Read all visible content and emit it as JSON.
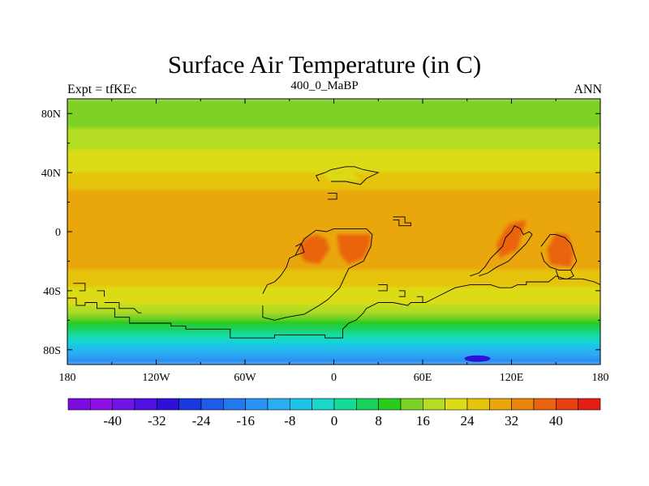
{
  "header": {
    "title": "Surface Air Temperature (in C)",
    "left_label": "Expt = tfKEc",
    "center_label": "400_0_MaBP",
    "right_label": "ANN"
  },
  "map": {
    "x_tick_labels": [
      "180",
      "120W",
      "60W",
      "0",
      "60E",
      "120E",
      "180"
    ],
    "y_tick_labels": [
      "80N",
      "40N",
      "0",
      "40S",
      "80S"
    ],
    "x_range": [
      -180,
      180
    ],
    "y_range": [
      -90,
      90
    ],
    "field_bands": [
      {
        "lat_top": 90,
        "lat_bottom": 80,
        "value": 12
      },
      {
        "lat_top": 80,
        "lat_bottom": 70,
        "value": 14
      },
      {
        "lat_top": 70,
        "lat_bottom": 62,
        "value": 16
      },
      {
        "lat_top": 62,
        "lat_bottom": 55,
        "value": 18
      },
      {
        "lat_top": 55,
        "lat_bottom": 48,
        "value": 20
      },
      {
        "lat_top": 48,
        "lat_bottom": 40,
        "value": 22
      },
      {
        "lat_top": 40,
        "lat_bottom": 34,
        "value": 24
      },
      {
        "lat_top": 34,
        "lat_bottom": 28,
        "value": 26
      },
      {
        "lat_top": 28,
        "lat_bottom": 22,
        "value": 28
      },
      {
        "lat_top": 22,
        "lat_bottom": -20,
        "value": 30
      },
      {
        "lat_top": -20,
        "lat_bottom": -26,
        "value": 28
      },
      {
        "lat_top": -26,
        "lat_bottom": -32,
        "value": 26
      },
      {
        "lat_top": -32,
        "lat_bottom": -38,
        "value": 24
      },
      {
        "lat_top": -38,
        "lat_bottom": -44,
        "value": 22
      },
      {
        "lat_top": -44,
        "lat_bottom": -50,
        "value": 20
      },
      {
        "lat_top": -50,
        "lat_bottom": -56,
        "value": 16
      },
      {
        "lat_top": -56,
        "lat_bottom": -60,
        "value": 12
      },
      {
        "lat_top": -60,
        "lat_bottom": -64,
        "value": 8
      },
      {
        "lat_top": -64,
        "lat_bottom": -68,
        "value": 4
      },
      {
        "lat_top": -68,
        "lat_bottom": -72,
        "value": 0
      },
      {
        "lat_top": -72,
        "lat_bottom": -76,
        "value": -4
      },
      {
        "lat_top": -76,
        "lat_bottom": -80,
        "value": -8
      },
      {
        "lat_top": -80,
        "lat_bottom": -85,
        "value": -12
      },
      {
        "lat_top": -85,
        "lat_bottom": -90,
        "value": -16
      }
    ],
    "hot_regions": [
      {
        "value": 36,
        "points": [
          [
            -20,
            -5
          ],
          [
            -12,
            -2
          ],
          [
            -5,
            -5
          ],
          [
            -3,
            -12
          ],
          [
            -10,
            -22
          ],
          [
            -20,
            -20
          ],
          [
            -24,
            -12
          ]
        ]
      },
      {
        "value": 36,
        "points": [
          [
            2,
            -2
          ],
          [
            25,
            -2
          ],
          [
            24,
            -10
          ],
          [
            20,
            -18
          ],
          [
            10,
            -22
          ],
          [
            4,
            -15
          ]
        ]
      },
      {
        "value": 36,
        "points": [
          [
            118,
            5
          ],
          [
            130,
            8
          ],
          [
            124,
            -12
          ],
          [
            112,
            -18
          ],
          [
            110,
            -8
          ]
        ]
      },
      {
        "value": 36,
        "points": [
          [
            150,
            -1
          ],
          [
            158,
            -2
          ],
          [
            162,
            -14
          ],
          [
            160,
            -24
          ],
          [
            146,
            -22
          ],
          [
            144,
            -12
          ]
        ]
      },
      {
        "value": 20,
        "points": [
          [
            -8,
            40
          ],
          [
            12,
            40
          ],
          [
            18,
            35
          ],
          [
            -2,
            34
          ]
        ]
      }
    ],
    "cold_spot": {
      "lon": 97,
      "lat": -86,
      "value": -32
    },
    "coastline_paths": [
      [
        [
          -176,
          -35
        ],
        [
          -168,
          -35
        ],
        [
          -168,
          -40
        ],
        [
          -172,
          -40
        ]
      ],
      [
        [
          -160,
          -40
        ],
        [
          -155,
          -40
        ],
        [
          -155,
          -44
        ]
      ],
      [
        [
          -180,
          -45
        ],
        [
          -174,
          -45
        ],
        [
          -174,
          -50
        ],
        [
          -168,
          -50
        ],
        [
          -168,
          -48
        ],
        [
          -160,
          -48
        ],
        [
          -160,
          -52
        ],
        [
          -154,
          -52
        ],
        [
          -148,
          -52
        ],
        [
          -148,
          -58
        ],
        [
          -138,
          -58
        ],
        [
          -138,
          -62
        ],
        [
          -110,
          -62
        ],
        [
          -110,
          -64
        ],
        [
          -100,
          -64
        ],
        [
          -100,
          -66
        ],
        [
          -70,
          -66
        ],
        [
          -70,
          -72
        ],
        [
          -40,
          -72
        ],
        [
          -40,
          -70
        ],
        [
          -6,
          -70
        ],
        [
          -6,
          -72
        ],
        [
          6,
          -72
        ],
        [
          6,
          -66
        ],
        [
          10,
          -62
        ],
        [
          15,
          -60
        ],
        [
          20,
          -55
        ],
        [
          22,
          -52
        ],
        [
          30,
          -48
        ],
        [
          40,
          -48
        ],
        [
          50,
          -50
        ],
        [
          52,
          -48
        ],
        [
          62,
          -48
        ],
        [
          68,
          -45
        ],
        [
          74,
          -42
        ],
        [
          82,
          -38
        ],
        [
          92,
          -36
        ],
        [
          106,
          -36
        ],
        [
          112,
          -38
        ],
        [
          120,
          -38
        ],
        [
          124,
          -36
        ],
        [
          130,
          -36
        ],
        [
          130,
          -34
        ],
        [
          145,
          -34
        ],
        [
          150,
          -30
        ],
        [
          156,
          -32
        ],
        [
          168,
          -32
        ],
        [
          176,
          -34
        ],
        [
          180,
          -36
        ]
      ],
      [
        [
          -155,
          -48
        ],
        [
          -145,
          -48
        ],
        [
          -145,
          -52
        ],
        [
          -135,
          -52
        ],
        [
          -132,
          -55
        ],
        [
          -130,
          -55
        ]
      ],
      [
        [
          -48,
          -50
        ],
        [
          -48,
          -58
        ],
        [
          -40,
          -60
        ],
        [
          -32,
          -58
        ],
        [
          -20,
          -56
        ],
        [
          -10,
          -50
        ],
        [
          -4,
          -46
        ],
        [
          4,
          -38
        ],
        [
          10,
          -25
        ],
        [
          20,
          -20
        ],
        [
          25,
          -10
        ],
        [
          26,
          -2
        ],
        [
          22,
          2
        ],
        [
          10,
          2
        ],
        [
          0,
          2
        ],
        [
          -5,
          0
        ],
        [
          -12,
          1
        ],
        [
          -20,
          -5
        ],
        [
          -24,
          -12
        ],
        [
          -26,
          -16
        ],
        [
          -30,
          -18
        ],
        [
          -32,
          -24
        ],
        [
          -36,
          -30
        ],
        [
          -40,
          -34
        ],
        [
          -45,
          -36
        ],
        [
          -48,
          -42
        ]
      ],
      [
        [
          -26,
          -10
        ],
        [
          -22,
          -8
        ],
        [
          -20,
          -14
        ],
        [
          -26,
          -16
        ]
      ],
      [
        [
          -10,
          34
        ],
        [
          -12,
          38
        ],
        [
          -6,
          40
        ],
        [
          -2,
          42
        ],
        [
          8,
          44
        ],
        [
          14,
          44
        ],
        [
          20,
          42
        ],
        [
          30,
          40
        ],
        [
          22,
          36
        ],
        [
          18,
          32
        ],
        [
          8,
          34
        ],
        [
          -2,
          34
        ]
      ],
      [
        [
          -4,
          26
        ],
        [
          2,
          26
        ],
        [
          2,
          22
        ],
        [
          -4,
          22
        ]
      ],
      [
        [
          40,
          10
        ],
        [
          48,
          10
        ],
        [
          48,
          6
        ],
        [
          52,
          6
        ],
        [
          52,
          4
        ],
        [
          44,
          4
        ],
        [
          44,
          8
        ],
        [
          40,
          8
        ]
      ],
      [
        [
          30,
          -36
        ],
        [
          36,
          -36
        ],
        [
          36,
          -40
        ],
        [
          30,
          -40
        ]
      ],
      [
        [
          44,
          -40
        ],
        [
          48,
          -40
        ],
        [
          48,
          -44
        ],
        [
          44,
          -44
        ]
      ],
      [
        [
          56,
          -44
        ],
        [
          60,
          -44
        ],
        [
          60,
          -48
        ],
        [
          56,
          -48
        ]
      ],
      [
        [
          92,
          -30
        ],
        [
          98,
          -28
        ],
        [
          102,
          -24
        ],
        [
          106,
          -18
        ],
        [
          110,
          -14
        ],
        [
          114,
          -10
        ],
        [
          116,
          -4
        ],
        [
          120,
          0
        ],
        [
          122,
          4
        ],
        [
          126,
          2
        ],
        [
          128,
          -2
        ],
        [
          132,
          0
        ],
        [
          134,
          -2
        ],
        [
          130,
          -8
        ],
        [
          124,
          -14
        ],
        [
          118,
          -20
        ],
        [
          110,
          -24
        ],
        [
          104,
          -28
        ],
        [
          98,
          -30
        ]
      ],
      [
        [
          140,
          -10
        ],
        [
          146,
          -2
        ],
        [
          150,
          -2
        ],
        [
          156,
          -4
        ],
        [
          160,
          -8
        ],
        [
          162,
          -14
        ],
        [
          164,
          -20
        ],
        [
          160,
          -26
        ],
        [
          152,
          -26
        ],
        [
          146,
          -24
        ],
        [
          142,
          -20
        ],
        [
          140,
          -14
        ]
      ],
      [
        [
          150,
          -26
        ],
        [
          152,
          -32
        ],
        [
          158,
          -32
        ],
        [
          162,
          -30
        ],
        [
          160,
          -26
        ]
      ]
    ]
  },
  "colorbar": {
    "tick_labels": [
      "-40",
      "-32",
      "-24",
      "-16",
      "-8",
      "0",
      "8",
      "16",
      "24",
      "32",
      "40"
    ],
    "min": -48,
    "max": 48,
    "step": 4,
    "colors": [
      "#7a0ce0",
      "#8a10e6",
      "#6e14e4",
      "#5010e0",
      "#3010d8",
      "#1838e0",
      "#1e5ce8",
      "#2478ee",
      "#2a92f2",
      "#2aaef2",
      "#1ec4e8",
      "#18d8cc",
      "#14dc96",
      "#1ad05c",
      "#28cc1a",
      "#7ed226",
      "#b4dc22",
      "#dcdc16",
      "#e6c40a",
      "#eaa60c",
      "#ea860e",
      "#ea6410",
      "#e64012",
      "#e41e14"
    ]
  }
}
